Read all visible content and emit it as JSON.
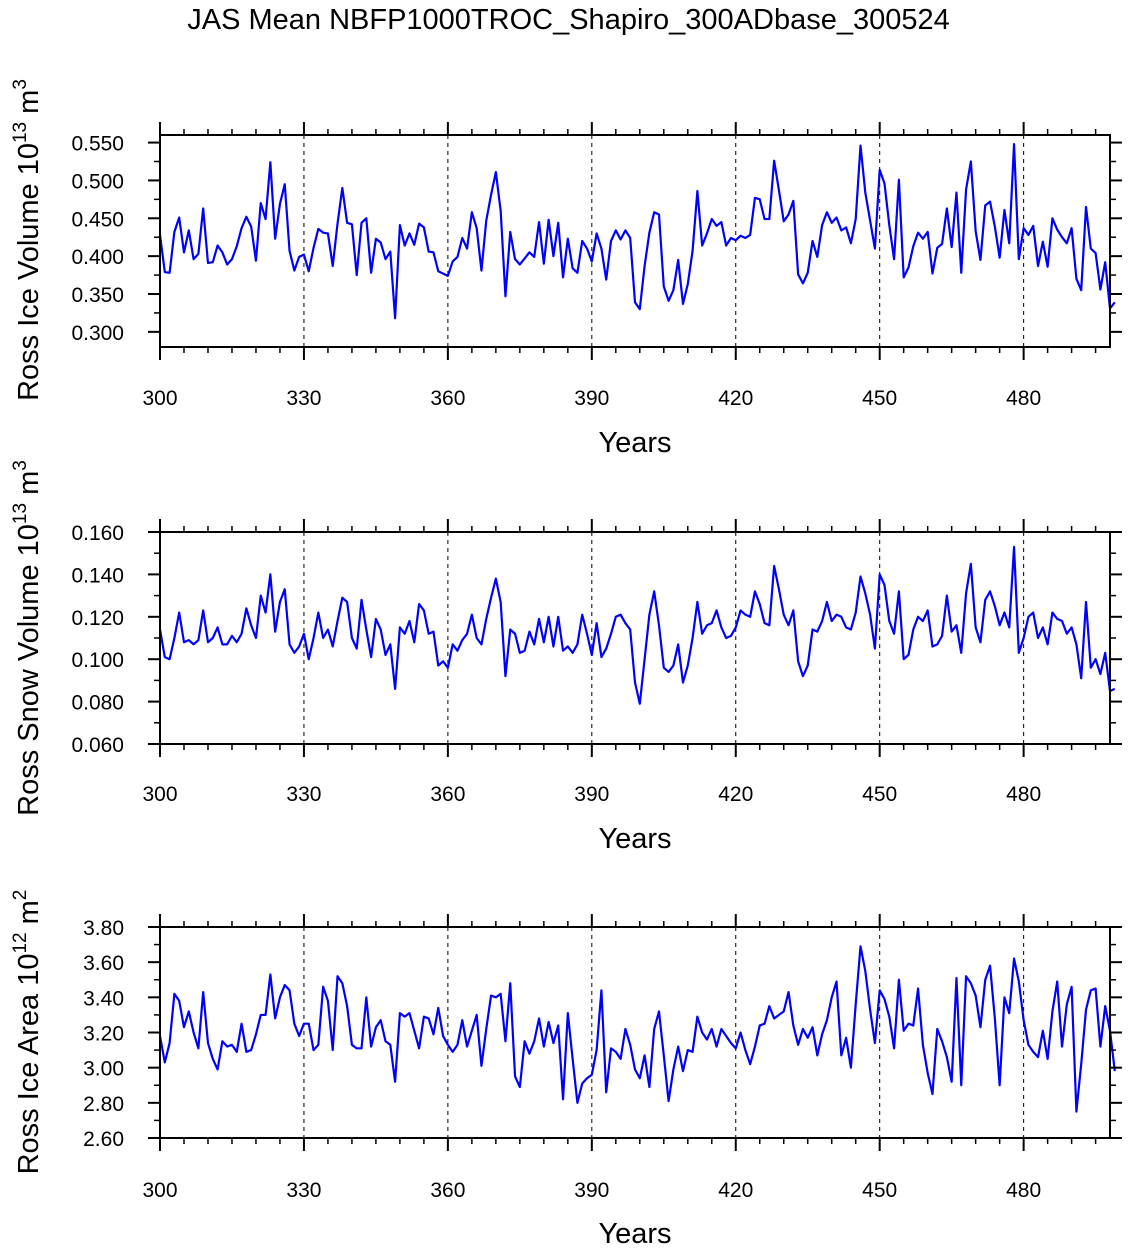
{
  "title": "JAS Mean NBFP1000TROC_Shapiro_300ADbase_300524",
  "line_color": "#0000ff",
  "chart_data": [
    {
      "type": "line",
      "ylabel_main": "Ross Ice Volume 10",
      "ylabel_exp": "13",
      "ylabel_unit": " m",
      "ylabel_unit_exp": "3",
      "xlabel": "Years",
      "xlim": [
        300,
        498
      ],
      "ylim": [
        0.28,
        0.56
      ],
      "yticks": [
        "0.550",
        "0.500",
        "0.450",
        "0.400",
        "0.350",
        "0.300"
      ],
      "ytick_values": [
        0.55,
        0.5,
        0.45,
        0.4,
        0.35,
        0.3
      ],
      "xticks": [
        "300",
        "330",
        "360",
        "390",
        "420",
        "450",
        "480"
      ],
      "xtick_values": [
        300,
        330,
        360,
        390,
        420,
        450,
        480
      ],
      "dashed_vlines": [
        330,
        360,
        390,
        420,
        450,
        480
      ],
      "x_start": 300,
      "values": [
        0.428,
        0.379,
        0.378,
        0.432,
        0.451,
        0.405,
        0.434,
        0.396,
        0.403,
        0.463,
        0.391,
        0.392,
        0.414,
        0.405,
        0.389,
        0.396,
        0.413,
        0.437,
        0.452,
        0.439,
        0.394,
        0.47,
        0.449,
        0.524,
        0.423,
        0.469,
        0.495,
        0.407,
        0.381,
        0.399,
        0.402,
        0.38,
        0.411,
        0.436,
        0.431,
        0.43,
        0.387,
        0.443,
        0.49,
        0.444,
        0.442,
        0.375,
        0.444,
        0.45,
        0.378,
        0.423,
        0.418,
        0.396,
        0.406,
        0.318,
        0.441,
        0.414,
        0.43,
        0.415,
        0.443,
        0.438,
        0.406,
        0.405,
        0.38,
        0.377,
        0.374,
        0.393,
        0.399,
        0.424,
        0.41,
        0.458,
        0.437,
        0.381,
        0.447,
        0.481,
        0.511,
        0.46,
        0.347,
        0.432,
        0.396,
        0.389,
        0.397,
        0.405,
        0.399,
        0.445,
        0.39,
        0.448,
        0.4,
        0.444,
        0.372,
        0.423,
        0.384,
        0.378,
        0.42,
        0.41,
        0.393,
        0.43,
        0.41,
        0.369,
        0.42,
        0.434,
        0.422,
        0.434,
        0.424,
        0.339,
        0.33,
        0.387,
        0.431,
        0.458,
        0.455,
        0.36,
        0.341,
        0.355,
        0.395,
        0.337,
        0.363,
        0.407,
        0.486,
        0.414,
        0.43,
        0.449,
        0.44,
        0.445,
        0.414,
        0.424,
        0.421,
        0.427,
        0.424,
        0.428,
        0.477,
        0.475,
        0.449,
        0.449,
        0.526,
        0.487,
        0.446,
        0.455,
        0.473,
        0.376,
        0.364,
        0.378,
        0.42,
        0.399,
        0.441,
        0.458,
        0.444,
        0.451,
        0.434,
        0.438,
        0.417,
        0.449,
        0.546,
        0.484,
        0.447,
        0.41,
        0.514,
        0.496,
        0.441,
        0.396,
        0.501,
        0.372,
        0.385,
        0.413,
        0.431,
        0.423,
        0.432,
        0.377,
        0.411,
        0.416,
        0.463,
        0.412,
        0.484,
        0.378,
        0.488,
        0.525,
        0.433,
        0.395,
        0.467,
        0.472,
        0.439,
        0.398,
        0.461,
        0.417,
        0.548,
        0.396,
        0.437,
        0.428,
        0.44,
        0.387,
        0.419,
        0.386,
        0.45,
        0.435,
        0.425,
        0.417,
        0.437,
        0.37,
        0.355,
        0.465,
        0.41,
        0.404,
        0.356,
        0.392,
        0.331,
        0.339
      ]
    },
    {
      "type": "line",
      "ylabel_main": "Ross Snow Volume 10",
      "ylabel_exp": "13",
      "ylabel_unit": " m",
      "ylabel_unit_exp": "3",
      "xlabel": "Years",
      "xlim": [
        300,
        498
      ],
      "ylim": [
        0.06,
        0.16
      ],
      "yticks": [
        "0.160",
        "0.140",
        "0.120",
        "0.100",
        "0.080",
        "0.060"
      ],
      "ytick_values": [
        0.16,
        0.14,
        0.12,
        0.1,
        0.08,
        0.06
      ],
      "xticks": [
        "300",
        "330",
        "360",
        "390",
        "420",
        "450",
        "480"
      ],
      "xtick_values": [
        300,
        330,
        360,
        390,
        420,
        450,
        480
      ],
      "dashed_vlines": [
        330,
        360,
        390,
        420,
        450,
        480
      ],
      "x_start": 300,
      "values": [
        0.114,
        0.101,
        0.1,
        0.11,
        0.122,
        0.108,
        0.109,
        0.107,
        0.109,
        0.123,
        0.108,
        0.11,
        0.115,
        0.107,
        0.107,
        0.111,
        0.108,
        0.112,
        0.124,
        0.116,
        0.11,
        0.13,
        0.122,
        0.14,
        0.113,
        0.127,
        0.133,
        0.107,
        0.103,
        0.106,
        0.112,
        0.1,
        0.11,
        0.122,
        0.11,
        0.114,
        0.106,
        0.118,
        0.129,
        0.127,
        0.11,
        0.105,
        0.128,
        0.114,
        0.101,
        0.119,
        0.114,
        0.102,
        0.107,
        0.086,
        0.115,
        0.112,
        0.118,
        0.108,
        0.126,
        0.123,
        0.112,
        0.113,
        0.097,
        0.099,
        0.096,
        0.107,
        0.104,
        0.109,
        0.112,
        0.121,
        0.11,
        0.107,
        0.119,
        0.129,
        0.138,
        0.127,
        0.092,
        0.114,
        0.112,
        0.103,
        0.104,
        0.113,
        0.107,
        0.119,
        0.108,
        0.12,
        0.106,
        0.12,
        0.104,
        0.106,
        0.103,
        0.107,
        0.121,
        0.112,
        0.102,
        0.117,
        0.101,
        0.105,
        0.112,
        0.12,
        0.121,
        0.117,
        0.114,
        0.089,
        0.079,
        0.1,
        0.121,
        0.132,
        0.116,
        0.096,
        0.094,
        0.097,
        0.107,
        0.089,
        0.097,
        0.11,
        0.127,
        0.112,
        0.116,
        0.117,
        0.123,
        0.115,
        0.11,
        0.111,
        0.115,
        0.123,
        0.121,
        0.12,
        0.132,
        0.126,
        0.117,
        0.116,
        0.144,
        0.133,
        0.121,
        0.116,
        0.123,
        0.099,
        0.092,
        0.097,
        0.114,
        0.113,
        0.118,
        0.127,
        0.118,
        0.121,
        0.12,
        0.115,
        0.114,
        0.122,
        0.139,
        0.131,
        0.121,
        0.105,
        0.14,
        0.135,
        0.118,
        0.112,
        0.132,
        0.1,
        0.102,
        0.114,
        0.12,
        0.118,
        0.123,
        0.106,
        0.107,
        0.111,
        0.13,
        0.113,
        0.116,
        0.103,
        0.131,
        0.145,
        0.115,
        0.108,
        0.128,
        0.132,
        0.125,
        0.116,
        0.122,
        0.115,
        0.153,
        0.103,
        0.11,
        0.12,
        0.122,
        0.11,
        0.115,
        0.107,
        0.122,
        0.119,
        0.118,
        0.112,
        0.115,
        0.107,
        0.091,
        0.127,
        0.096,
        0.1,
        0.093,
        0.103,
        0.085,
        0.086
      ]
    },
    {
      "type": "line",
      "ylabel_main": "Ross Ice Area 10",
      "ylabel_exp": "12",
      "ylabel_unit": " m",
      "ylabel_unit_exp": "2",
      "xlabel": "Years",
      "xlim": [
        300,
        498
      ],
      "ylim": [
        2.6,
        3.8
      ],
      "yticks": [
        "3.80",
        "3.60",
        "3.40",
        "3.20",
        "3.00",
        "2.80",
        "2.60"
      ],
      "ytick_values": [
        3.8,
        3.6,
        3.4,
        3.2,
        3.0,
        2.8,
        2.6
      ],
      "xticks": [
        "300",
        "330",
        "360",
        "390",
        "420",
        "450",
        "480"
      ],
      "xtick_values": [
        300,
        330,
        360,
        390,
        420,
        450,
        480
      ],
      "dashed_vlines": [
        330,
        360,
        390,
        420,
        450,
        480
      ],
      "x_start": 300,
      "values": [
        3.18,
        3.03,
        3.14,
        3.42,
        3.38,
        3.23,
        3.32,
        3.2,
        3.11,
        3.43,
        3.14,
        3.05,
        2.99,
        3.15,
        3.12,
        3.13,
        3.09,
        3.25,
        3.09,
        3.1,
        3.19,
        3.3,
        3.3,
        3.53,
        3.28,
        3.4,
        3.47,
        3.44,
        3.25,
        3.18,
        3.25,
        3.25,
        3.1,
        3.13,
        3.46,
        3.38,
        3.1,
        3.52,
        3.48,
        3.35,
        3.13,
        3.11,
        3.11,
        3.4,
        3.12,
        3.23,
        3.27,
        3.15,
        3.13,
        2.92,
        3.31,
        3.29,
        3.31,
        3.21,
        3.11,
        3.29,
        3.28,
        3.19,
        3.34,
        3.18,
        3.13,
        3.09,
        3.13,
        3.27,
        3.12,
        3.21,
        3.3,
        3.01,
        3.22,
        3.41,
        3.4,
        3.42,
        3.15,
        3.48,
        2.95,
        2.89,
        3.15,
        3.08,
        3.15,
        3.28,
        3.12,
        3.26,
        3.14,
        3.24,
        2.82,
        3.31,
        3.05,
        2.8,
        2.91,
        2.94,
        2.96,
        3.1,
        3.44,
        2.86,
        3.11,
        3.09,
        3.05,
        3.22,
        3.13,
        2.99,
        2.94,
        3.07,
        2.89,
        3.22,
        3.32,
        3.07,
        2.81,
        2.99,
        3.12,
        2.98,
        3.1,
        3.09,
        3.29,
        3.2,
        3.16,
        3.22,
        3.12,
        3.22,
        3.18,
        3.14,
        3.11,
        3.2,
        3.1,
        3.02,
        3.12,
        3.24,
        3.25,
        3.35,
        3.28,
        3.3,
        3.32,
        3.43,
        3.24,
        3.13,
        3.22,
        3.17,
        3.23,
        3.07,
        3.19,
        3.27,
        3.4,
        3.49,
        3.07,
        3.17,
        3.0,
        3.36,
        3.69,
        3.55,
        3.33,
        3.14,
        3.44,
        3.39,
        3.29,
        3.11,
        3.5,
        3.21,
        3.25,
        3.24,
        3.45,
        3.13,
        2.97,
        2.85,
        3.22,
        3.15,
        3.06,
        2.92,
        3.51,
        2.9,
        3.52,
        3.48,
        3.41,
        3.23,
        3.5,
        3.58,
        3.28,
        2.9,
        3.4,
        3.31,
        3.62,
        3.49,
        3.27,
        3.13,
        3.09,
        3.06,
        3.21,
        3.05,
        3.32,
        3.49,
        3.12,
        3.36,
        3.46,
        2.75,
        3.02,
        3.33,
        3.44,
        3.45,
        3.12,
        3.35,
        3.21,
        2.98
      ]
    }
  ]
}
